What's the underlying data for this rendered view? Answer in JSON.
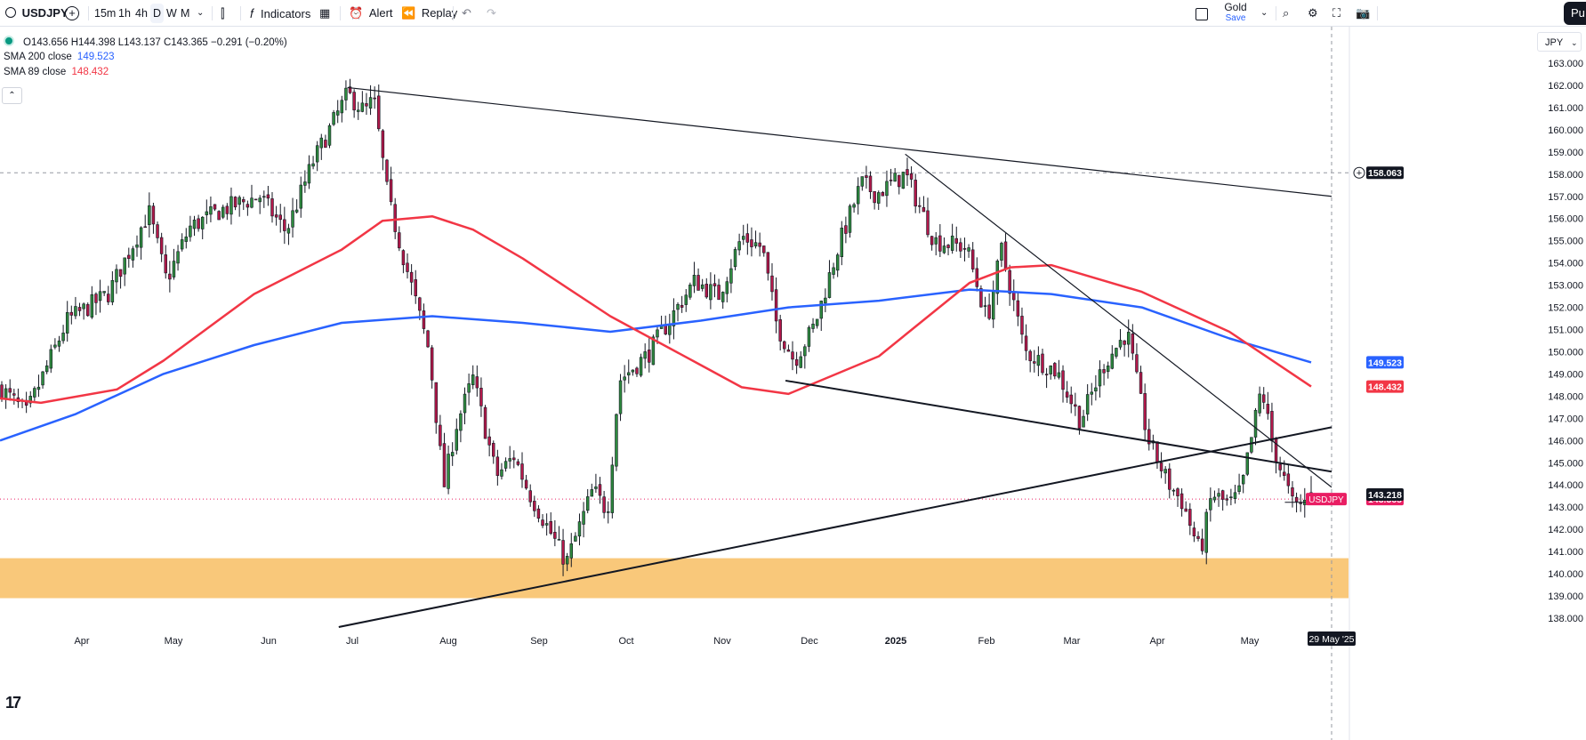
{
  "toolbar": {
    "symbol": "USDJPY",
    "timeframes": [
      "15m",
      "1h",
      "4h",
      "D",
      "W",
      "M"
    ],
    "active_timeframe": "D",
    "indicators_label": "Indicators",
    "alert_label": "Alert",
    "replay_label": "Replay",
    "layout_name": "Gold",
    "save_label": "Save",
    "publish_label": "Pu"
  },
  "legend": {
    "ohlc": "O143.656 H144.398 L143.137 C143.365 −0.291 (−0.20%)",
    "sma200_label": "SMA 200 close",
    "sma200_value": "149.523",
    "sma89_label": "SMA 89 close",
    "sma89_value": "148.432"
  },
  "currency": "JPY",
  "colors": {
    "up": "#26a69a",
    "up_fill": "#2e7d32",
    "down": "#b2184a",
    "sma200": "#2962ff",
    "sma89": "#f23645",
    "zone": "#f9c87a",
    "price_tag": "#e91e63",
    "crosshair_tag": "#131722"
  },
  "chart_data": {
    "type": "candlestick",
    "symbol": "USDJPY",
    "interval": "D",
    "y_range": [
      137.5,
      163.8
    ],
    "y_ticks": [
      "163.000",
      "162.000",
      "161.000",
      "160.000",
      "159.000",
      "158.000",
      "157.000",
      "156.000",
      "155.000",
      "154.000",
      "153.000",
      "152.000",
      "151.000",
      "150.000",
      "149.000",
      "148.000",
      "147.000",
      "146.000",
      "145.000",
      "144.000",
      "143.000",
      "142.000",
      "141.000",
      "140.000",
      "139.000",
      "138.000"
    ],
    "x_labels": [
      "Apr",
      "May",
      "Jun",
      "Jul",
      "Aug",
      "Sep",
      "Oct",
      "Nov",
      "Dec",
      "2025",
      "Feb",
      "Mar",
      "Apr",
      "May"
    ],
    "last_price": {
      "label": "USDJPY",
      "value": "143.365"
    },
    "price_lines": [
      {
        "label": "158.063",
        "value": 158.063
      },
      {
        "label": "143.218",
        "value": 143.218
      }
    ],
    "sma_tags": [
      {
        "label": "149.523",
        "value": 149.523,
        "series": "SMA 200"
      },
      {
        "label": "148.432",
        "value": 148.432,
        "series": "SMA 89"
      }
    ],
    "date_tag": "29 May '25",
    "support_zone": [
      138.9,
      140.7
    ],
    "series": [
      {
        "name": "SMA 200 close",
        "color": "#2962ff",
        "points": [
          [
            "2024-03-06",
            146.0
          ],
          [
            "2024-04-01",
            147.2
          ],
          [
            "2024-05-01",
            149.0
          ],
          [
            "2024-06-01",
            150.3
          ],
          [
            "2024-07-01",
            151.3
          ],
          [
            "2024-08-01",
            151.6
          ],
          [
            "2024-09-01",
            151.3
          ],
          [
            "2024-10-01",
            150.9
          ],
          [
            "2024-11-01",
            151.4
          ],
          [
            "2024-12-01",
            152.0
          ],
          [
            "2025-01-01",
            152.3
          ],
          [
            "2025-02-01",
            152.8
          ],
          [
            "2025-03-01",
            152.6
          ],
          [
            "2025-04-01",
            152.0
          ],
          [
            "2025-05-01",
            150.6
          ],
          [
            "2025-05-29",
            149.523
          ]
        ]
      },
      {
        "name": "SMA 89 close",
        "color": "#f23645",
        "points": [
          [
            "2024-03-06",
            147.9
          ],
          [
            "2024-03-20",
            147.7
          ],
          [
            "2024-04-15",
            148.3
          ],
          [
            "2024-05-01",
            149.6
          ],
          [
            "2024-06-01",
            152.6
          ],
          [
            "2024-07-01",
            154.6
          ],
          [
            "2024-07-15",
            155.9
          ],
          [
            "2024-08-01",
            156.1
          ],
          [
            "2024-08-15",
            155.5
          ],
          [
            "2024-09-01",
            154.2
          ],
          [
            "2024-10-01",
            151.6
          ],
          [
            "2024-11-01",
            149.4
          ],
          [
            "2024-11-15",
            148.4
          ],
          [
            "2024-12-01",
            148.1
          ],
          [
            "2025-01-01",
            149.8
          ],
          [
            "2025-02-01",
            153.1
          ],
          [
            "2025-02-15",
            153.8
          ],
          [
            "2025-03-01",
            153.9
          ],
          [
            "2025-04-01",
            152.7
          ],
          [
            "2025-05-01",
            150.9
          ],
          [
            "2025-05-29",
            148.432
          ]
        ]
      }
    ],
    "trendlines": [
      {
        "from": [
          "2024-07-03",
          161.9
        ],
        "to": [
          "2025-06-05",
          157.0
        ],
        "color": "#131722",
        "width": 1.2
      },
      {
        "from": [
          "2025-01-10",
          158.9
        ],
        "to": [
          "2025-06-05",
          143.9
        ],
        "color": "#131722",
        "width": 1.2
      },
      {
        "from": [
          "2024-11-30",
          148.7
        ],
        "to": [
          "2025-06-05",
          144.6
        ],
        "color": "#131722",
        "width": 2
      },
      {
        "from": [
          "2024-06-30",
          137.6
        ],
        "to": [
          "2025-06-05",
          146.6
        ],
        "color": "#131722",
        "width": 2
      },
      {
        "from": [
          "2025-05-20",
          143.218
        ],
        "to": [
          "2025-05-31",
          143.218
        ],
        "color": "#131722",
        "width": 1
      }
    ],
    "anchors": [
      [
        "2024-03-06",
        148.4
      ],
      [
        "2024-03-15",
        147.2
      ],
      [
        "2024-03-29",
        151.4
      ],
      [
        "2024-04-12",
        152.6
      ],
      [
        "2024-04-26",
        156.3
      ],
      [
        "2024-05-02",
        153.2
      ],
      [
        "2024-05-10",
        155.6
      ],
      [
        "2024-05-21",
        156.4
      ],
      [
        "2024-06-03",
        157.0
      ],
      [
        "2024-06-12",
        155.4
      ],
      [
        "2024-06-21",
        158.5
      ],
      [
        "2024-07-03",
        161.6
      ],
      [
        "2024-07-09",
        160.8
      ],
      [
        "2024-07-12",
        161.4
      ],
      [
        "2024-07-17",
        156.8
      ],
      [
        "2024-07-24",
        153.4
      ],
      [
        "2024-07-31",
        150.0
      ],
      [
        "2024-08-05",
        143.9
      ],
      [
        "2024-08-09",
        146.6
      ],
      [
        "2024-08-15",
        148.8
      ],
      [
        "2024-08-23",
        144.4
      ],
      [
        "2024-08-29",
        145.3
      ],
      [
        "2024-09-03",
        143.7
      ],
      [
        "2024-09-16",
        140.5
      ],
      [
        "2024-09-25",
        143.8
      ],
      [
        "2024-09-30",
        142.8
      ],
      [
        "2024-10-04",
        148.7
      ],
      [
        "2024-10-14",
        149.9
      ],
      [
        "2024-10-24",
        152.0
      ],
      [
        "2024-10-30",
        153.2
      ],
      [
        "2024-11-07",
        152.5
      ],
      [
        "2024-11-15",
        155.2
      ],
      [
        "2024-11-22",
        154.7
      ],
      [
        "2024-11-27",
        151.2
      ],
      [
        "2024-12-03",
        149.6
      ],
      [
        "2024-12-10",
        151.2
      ],
      [
        "2024-12-18",
        154.7
      ],
      [
        "2024-12-26",
        157.6
      ],
      [
        "2024-12-31",
        157.1
      ],
      [
        "2025-01-10",
        158.0
      ],
      [
        "2025-01-15",
        156.5
      ],
      [
        "2025-01-20",
        155.0
      ],
      [
        "2025-01-31",
        154.7
      ],
      [
        "2025-02-07",
        151.4
      ],
      [
        "2025-02-12",
        154.6
      ],
      [
        "2025-02-20",
        150.0
      ],
      [
        "2025-03-03",
        149.1
      ],
      [
        "2025-03-11",
        146.9
      ],
      [
        "2025-03-19",
        149.4
      ],
      [
        "2025-03-27",
        150.9
      ],
      [
        "2025-04-03",
        146.1
      ],
      [
        "2025-04-10",
        144.1
      ],
      [
        "2025-04-15",
        143.2
      ],
      [
        "2025-04-21",
        140.9
      ],
      [
        "2025-04-25",
        143.6
      ],
      [
        "2025-05-01",
        143.1
      ],
      [
        "2025-05-05",
        143.7
      ],
      [
        "2025-05-12",
        148.4
      ],
      [
        "2025-05-16",
        145.7
      ],
      [
        "2025-05-23",
        143.0
      ],
      [
        "2025-05-29",
        143.365
      ]
    ],
    "last_candle": {
      "date": "2025-05-29",
      "open": 143.656,
      "high": 144.398,
      "low": 143.137,
      "close": 143.365
    }
  }
}
